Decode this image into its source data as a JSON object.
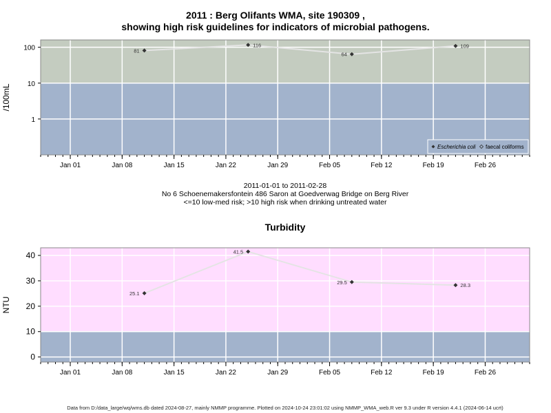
{
  "page": {
    "title_line1": "2011 : Berg Olifants WMA, site 190309 ,",
    "title_line2": "showing high risk guidelines for indicators of microbial pathogens.",
    "date_range": "2011-01-01 to 2011-02-28",
    "site_description": "No 6 Schoenemakersfontein 486 Saron at Goedverwag Bridge on Berg River",
    "risk_note": "<=10 low-med risk; >10 high risk when drinking untreated water",
    "turbidity_title": "Turbidity",
    "footer": "Data from D:/data_large/wq/wms.db dated 2024-08-27, mainly NMMP programme. Plotted on 2024-10-24 23:01:02 using NMMP_WMA_web.R ver 9.3 under R version 4.4.1 (2024-06-14 ucrt)"
  },
  "colors": {
    "high_risk_band": "#c4ccc0",
    "low_risk_band": "#a2b3cc",
    "turbidity_high_band": "#ffddff",
    "turbidity_low_band": "#a2b3cc",
    "series_line": "#e4e4e4",
    "marker": "#333333"
  },
  "chart_data": [
    {
      "type": "line",
      "title": "",
      "ylabel": "/100mL",
      "xlabel": "",
      "y_scale": "log",
      "ylim": [
        0.1,
        160
      ],
      "xlim": [
        "2010-12-28",
        "2011-03-04"
      ],
      "y_ticks": [
        "1",
        "10",
        "100"
      ],
      "x_ticks": [
        "Jan 01",
        "Jan 08",
        "Jan 15",
        "Jan 22",
        "Jan 29",
        "Feb 05",
        "Feb 12",
        "Feb 19",
        "Feb 26"
      ],
      "guideline": 10,
      "legend_position": "bottom-right",
      "legend": [
        "Escherichia coli",
        "faecal coliforms"
      ],
      "series": [
        {
          "name": "Escherichia coli",
          "x": [
            "2011-01-11",
            "2011-01-25",
            "2011-02-08",
            "2011-02-22"
          ],
          "values": [
            81,
            116,
            64,
            109
          ],
          "labels": [
            "81",
            "116",
            "64",
            "109"
          ]
        }
      ],
      "grid": true
    },
    {
      "type": "line",
      "title": "Turbidity",
      "ylabel": "NTU",
      "xlabel": "",
      "ylim": [
        -2,
        43
      ],
      "xlim": [
        "2010-12-28",
        "2011-03-04"
      ],
      "y_ticks": [
        "0",
        "10",
        "20",
        "30",
        "40"
      ],
      "x_ticks": [
        "Jan 01",
        "Jan 08",
        "Jan 15",
        "Jan 22",
        "Jan 29",
        "Feb 05",
        "Feb 12",
        "Feb 19",
        "Feb 26"
      ],
      "guideline": 10,
      "series": [
        {
          "name": "",
          "x": [
            "2011-01-11",
            "2011-01-25",
            "2011-02-08",
            "2011-02-22"
          ],
          "values": [
            25.1,
            41.5,
            29.5,
            28.3
          ],
          "labels": [
            "25.1",
            "41.5",
            "29.5",
            "28.3"
          ]
        }
      ],
      "grid": true
    }
  ]
}
